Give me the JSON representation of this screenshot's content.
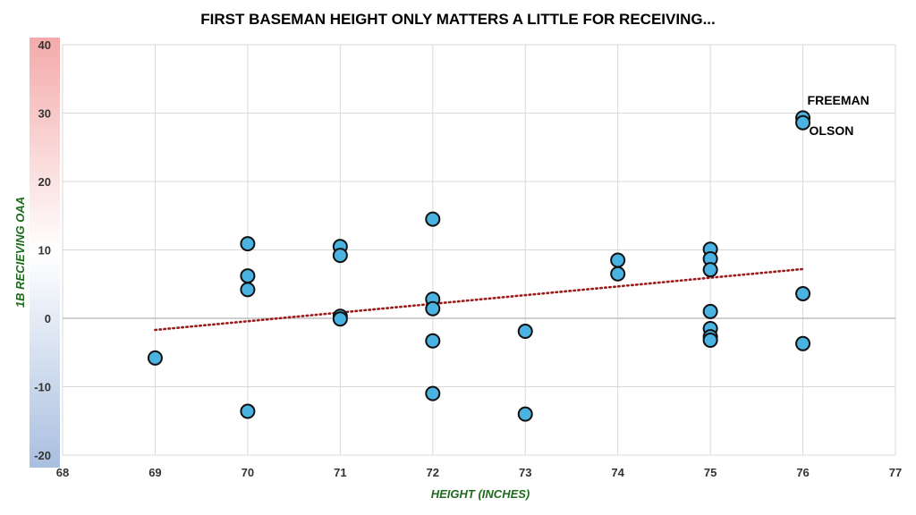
{
  "chart_data": {
    "type": "scatter",
    "title": "FIRST BASEMAN HEIGHT ONLY MATTERS A LITTLE FOR RECEIVING...",
    "xlabel": "HEIGHT (INCHES)",
    "ylabel": "1B RECIEVING OAA",
    "xlim": [
      68,
      77
    ],
    "ylim": [
      -20,
      40
    ],
    "x_ticks": [
      "68",
      "69",
      "70",
      "71",
      "72",
      "73",
      "74",
      "75",
      "76",
      "77"
    ],
    "y_ticks": [
      "-20",
      "-10",
      "0",
      "10",
      "20",
      "30",
      "40"
    ],
    "grid": true,
    "points": [
      {
        "x": 69,
        "y": -5.8
      },
      {
        "x": 70,
        "y": 10.9
      },
      {
        "x": 70,
        "y": 6.2
      },
      {
        "x": 70,
        "y": 4.2
      },
      {
        "x": 70,
        "y": -13.6
      },
      {
        "x": 71,
        "y": 10.5
      },
      {
        "x": 71,
        "y": 9.2
      },
      {
        "x": 71,
        "y": 0.3
      },
      {
        "x": 71,
        "y": -0.1
      },
      {
        "x": 72,
        "y": 14.5
      },
      {
        "x": 72,
        "y": 2.8
      },
      {
        "x": 72,
        "y": 1.4
      },
      {
        "x": 72,
        "y": -3.3
      },
      {
        "x": 72,
        "y": -11.0
      },
      {
        "x": 73,
        "y": -1.9
      },
      {
        "x": 73,
        "y": -14.0
      },
      {
        "x": 74,
        "y": 8.5
      },
      {
        "x": 74,
        "y": 6.5
      },
      {
        "x": 75,
        "y": 10.1
      },
      {
        "x": 75,
        "y": 8.7
      },
      {
        "x": 75,
        "y": 7.1
      },
      {
        "x": 75,
        "y": 1.0
      },
      {
        "x": 75,
        "y": -1.5
      },
      {
        "x": 75,
        "y": -2.7
      },
      {
        "x": 75,
        "y": -3.2
      },
      {
        "x": 76,
        "y": 29.3
      },
      {
        "x": 76,
        "y": 28.6
      },
      {
        "x": 76,
        "y": 3.6
      },
      {
        "x": 76,
        "y": -3.7
      }
    ],
    "trendline": {
      "x": [
        69,
        76
      ],
      "y": [
        -1.7,
        7.2
      ],
      "style": "dotted",
      "color": "#9b1b1b"
    },
    "annotations": [
      {
        "text": "FREEMAN",
        "x": 76,
        "y": 29.3
      },
      {
        "text": "OLSON",
        "x": 76,
        "y": 28.6
      }
    ],
    "marker_color": "#4ab3e2",
    "marker_edge": "#111111",
    "y_gradient": [
      "#f4aaaa",
      "#ffffff",
      "#a9bfe0"
    ]
  }
}
